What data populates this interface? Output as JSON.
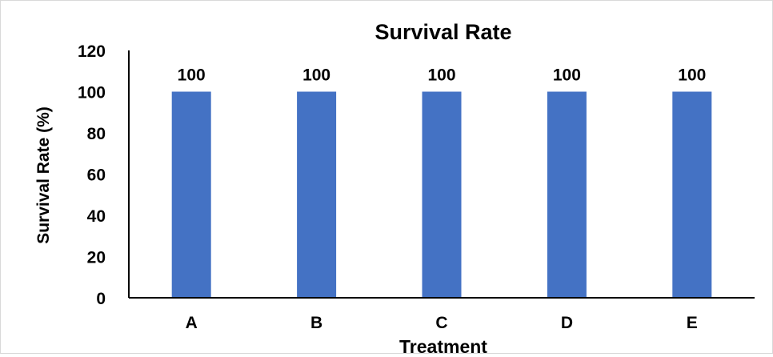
{
  "chart_data": {
    "type": "bar",
    "title": "Survival Rate",
    "xlabel": "Treatment",
    "ylabel": "Survival Rate (%)",
    "categories": [
      "A",
      "B",
      "C",
      "D",
      "E"
    ],
    "values": [
      100,
      100,
      100,
      100,
      100
    ],
    "data_labels": [
      "100",
      "100",
      "100",
      "100",
      "100"
    ],
    "ylim": [
      0,
      120
    ],
    "yticks": [
      0,
      20,
      40,
      60,
      80,
      100,
      120
    ],
    "ytick_labels": [
      "0",
      "20",
      "40",
      "60",
      "80",
      "100",
      "120"
    ],
    "grid": false,
    "legend": "none",
    "bar_color": "#4472C4",
    "axis_color": "#000000"
  }
}
